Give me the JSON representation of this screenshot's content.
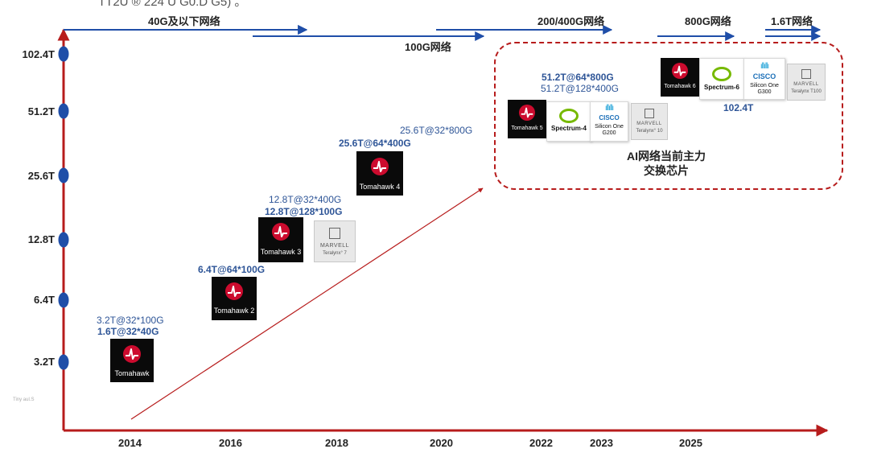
{
  "header": {
    "cropped_title": "TT2U ® 224 U G0.D G5) 。"
  },
  "watermark": "Tiny aul.S",
  "eras": [
    {
      "label": "40G及以下网络"
    },
    {
      "label": "100G网络"
    },
    {
      "label": "200/400G网络"
    },
    {
      "label": "800G网络"
    },
    {
      "label": "1.6T网络"
    }
  ],
  "chart_data": {
    "type": "scatter",
    "title": "",
    "xlabel": "",
    "ylabel": "",
    "x_ticks": [
      "2014",
      "2016",
      "2018",
      "2020",
      "2022",
      "2023",
      "2025"
    ],
    "y_ticks": [
      "3.2T",
      "6.4T",
      "12.8T",
      "25.6T",
      "51.2T",
      "102.4T"
    ],
    "y_scale": "log2",
    "grid": false,
    "trend_arrow": {
      "from": {
        "x": 2014,
        "y": "3.2T"
      },
      "to": {
        "x": 2020,
        "y": "25.6T"
      }
    },
    "points": [
      {
        "x": 2014,
        "capacity": "3.2T",
        "chips": [
          "Tomahawk"
        ],
        "specs": [
          {
            "text": "3.2T@32*100G",
            "bold": false
          },
          {
            "text": "1.6T@32*40G",
            "bold": true
          }
        ]
      },
      {
        "x": 2016,
        "capacity": "6.4T",
        "chips": [
          "Tomahawk 2"
        ],
        "specs": [
          {
            "text": "6.4T@64*100G",
            "bold": true
          }
        ]
      },
      {
        "x": 2017,
        "capacity": "12.8T",
        "chips": [
          "Tomahawk 3",
          "MARVELL Teralynx 7"
        ],
        "specs": [
          {
            "text": "12.8T@32*400G",
            "bold": false
          },
          {
            "text": "12.8T@128*100G",
            "bold": true
          }
        ]
      },
      {
        "x": 2019,
        "capacity": "25.6T",
        "chips": [
          "Tomahawk 4"
        ],
        "specs": [
          {
            "text": "25.6T@32*800G",
            "bold": false
          },
          {
            "text": "25.6T@64*400G",
            "bold": true
          }
        ]
      },
      {
        "x": 2022,
        "capacity": "51.2T",
        "chips": [
          "Tomahawk 5",
          "Spectrum-4",
          "Silicon One G200",
          "MARVELL Teralynx 10"
        ],
        "specs": [
          {
            "text": "51.2T@64*800G",
            "bold": true
          },
          {
            "text": "51.2T@128*400G",
            "bold": false
          }
        ]
      },
      {
        "x": 2025,
        "capacity": "102.4T",
        "chips": [
          "Tomahawk 6",
          "Spectrum-6",
          "Silicon One G300",
          "MARVELL Teralynx T100"
        ],
        "specs": [
          {
            "text": "102.4T",
            "bold": true
          }
        ]
      }
    ],
    "annotation": [
      "AI网络当前主力",
      "交换芯片"
    ]
  },
  "chips": {
    "tomahawk": "Tomahawk",
    "tomahawk2": "Tomahawk 2",
    "tomahawk3": "Tomahawk 3",
    "tomahawk4": "Tomahawk 4",
    "tomahawk5": "Tomahawk 5",
    "tomahawk6": "Tomahawk 6",
    "spectrum4": "Spectrum-4",
    "spectrum6": "Spectrum-6",
    "cisco": "CISCO",
    "g200": [
      "Silicon One",
      "G200"
    ],
    "g300": [
      "Silicon One",
      "G300"
    ],
    "marvell": "MARVELL",
    "teralynx7": "Teralynx° 7",
    "teralynx10": "Teralynx° 10",
    "teralynxT100": "Teralynx T100"
  },
  "colors": {
    "axis": "#b71c1c",
    "era_arrow": "#1f4ea8",
    "spec_text": "#2e5597",
    "broadcom_red": "#cc0b2e",
    "nvidia_green": "#76b900",
    "cisco_blue": "#1ba0d7"
  }
}
